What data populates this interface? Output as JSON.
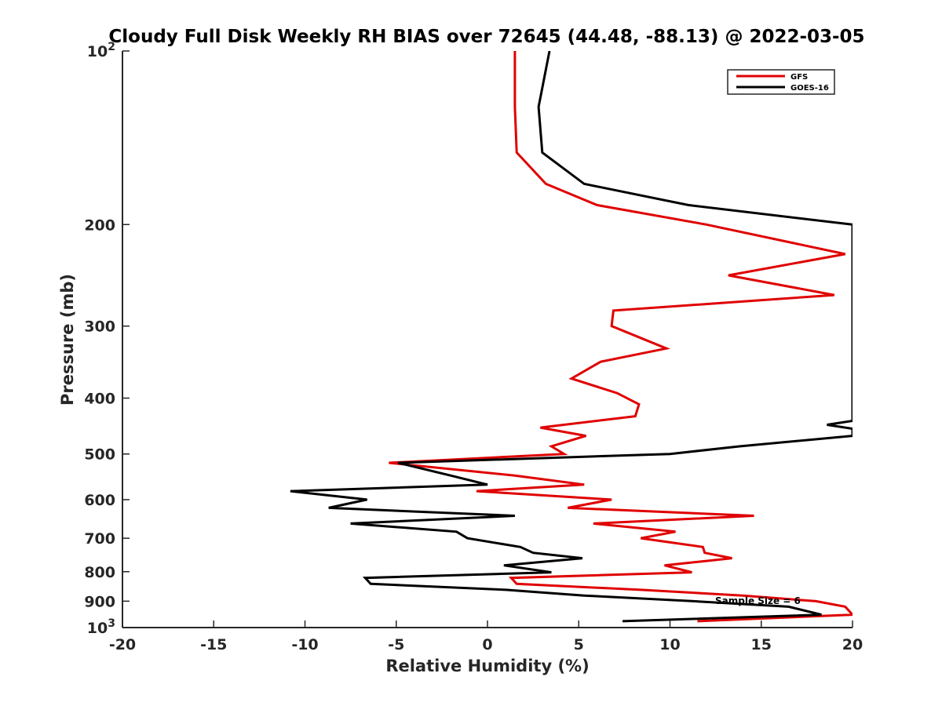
{
  "chart_data": {
    "type": "line",
    "title": "Cloudy Full Disk Weekly RH BIAS over 72645 (44.48, -88.13) @ 2022-03-05",
    "xlabel": "Relative Humidity (%)",
    "ylabel": "Pressure (mb)",
    "xlim": [
      -20,
      20
    ],
    "ylim": [
      100,
      1000
    ],
    "y_scale": "log",
    "y_reversed": true,
    "grid": false,
    "legend_position": "top-right",
    "x_ticks": [
      "-20",
      "-15",
      "-10",
      "-5",
      "0",
      "5",
      "10",
      "15",
      "20"
    ],
    "y_ticks": [
      {
        "value": 100,
        "base": "10",
        "exp": "2"
      },
      {
        "value": 200,
        "label": "200"
      },
      {
        "value": 300,
        "label": "300"
      },
      {
        "value": 400,
        "label": "400"
      },
      {
        "value": 500,
        "label": "500"
      },
      {
        "value": 600,
        "label": "600"
      },
      {
        "value": 700,
        "label": "700"
      },
      {
        "value": 800,
        "label": "800"
      },
      {
        "value": 900,
        "label": "900"
      },
      {
        "value": 1000,
        "base": "10",
        "exp": "3"
      }
    ],
    "annotation": "Sample Size = 6",
    "series": [
      {
        "name": "GFS",
        "color": "#e00000",
        "points": [
          [
            1.5,
            100
          ],
          [
            1.5,
            125
          ],
          [
            1.6,
            150
          ],
          [
            3.2,
            170
          ],
          [
            6,
            185
          ],
          [
            12,
            200
          ],
          [
            19.6,
            225
          ],
          [
            13.2,
            245
          ],
          [
            19,
            265
          ],
          [
            6.9,
            282
          ],
          [
            6.8,
            300
          ],
          [
            9.8,
            328
          ],
          [
            6.2,
            346
          ],
          [
            4.6,
            370
          ],
          [
            7.1,
            392
          ],
          [
            8.3,
            410
          ],
          [
            8.1,
            430
          ],
          [
            2.9,
            450
          ],
          [
            5.4,
            465
          ],
          [
            3.5,
            485
          ],
          [
            4.2,
            500
          ],
          [
            -5.4,
            518
          ],
          [
            1.5,
            545
          ],
          [
            5.3,
            565
          ],
          [
            -0.6,
            580
          ],
          [
            6.8,
            600
          ],
          [
            4.4,
            620
          ],
          [
            14.6,
            640
          ],
          [
            5.8,
            660
          ],
          [
            10.3,
            682
          ],
          [
            8.4,
            700
          ],
          [
            11.8,
            725
          ],
          [
            11.9,
            742
          ],
          [
            13.4,
            758
          ],
          [
            9.7,
            780
          ],
          [
            11.2,
            802
          ],
          [
            1.3,
            820
          ],
          [
            1.6,
            840
          ],
          [
            8.4,
            860
          ],
          [
            14,
            880
          ],
          [
            18,
            900
          ],
          [
            19.6,
            920
          ],
          [
            20,
            950
          ],
          [
            11.5,
            975
          ]
        ]
      },
      {
        "name": "GOES-16",
        "color": "#000000",
        "points": [
          [
            3.4,
            100
          ],
          [
            2.8,
            125
          ],
          [
            3,
            150
          ],
          [
            5.3,
            170
          ],
          [
            11,
            185
          ],
          [
            20,
            200
          ],
          [
            20,
            438
          ],
          [
            18.6,
            445
          ],
          [
            20,
            452
          ],
          [
            20,
            465
          ],
          [
            13.8,
            485
          ],
          [
            10,
            500
          ],
          [
            -4.9,
            518
          ],
          [
            -2,
            545
          ],
          [
            0,
            565
          ],
          [
            -10.8,
            580
          ],
          [
            -6.6,
            600
          ],
          [
            -8.7,
            620
          ],
          [
            1.5,
            640
          ],
          [
            -7.5,
            660
          ],
          [
            -1.7,
            682
          ],
          [
            -1.1,
            700
          ],
          [
            1.8,
            725
          ],
          [
            2.5,
            742
          ],
          [
            5.2,
            758
          ],
          [
            0.9,
            780
          ],
          [
            3.5,
            802
          ],
          [
            -6.7,
            820
          ],
          [
            -6.4,
            840
          ],
          [
            1,
            860
          ],
          [
            5.3,
            880
          ],
          [
            11.3,
            900
          ],
          [
            16.5,
            920
          ],
          [
            18.3,
            950
          ],
          [
            7.4,
            975
          ]
        ]
      }
    ]
  }
}
